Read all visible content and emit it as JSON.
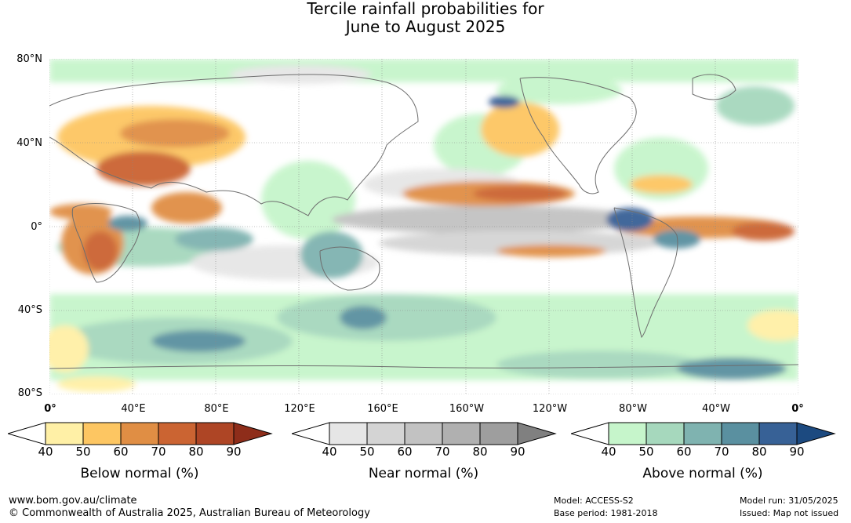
{
  "title": {
    "line1": "Tercile rainfall probabilities for",
    "line2": "June to August 2025"
  },
  "map": {
    "lat_labels": [
      "80°N",
      "40°N",
      "0°",
      "40°S",
      "80°S"
    ],
    "lon_labels": [
      "0°",
      "40°E",
      "80°E",
      "120°E",
      "160°E",
      "160°W",
      "120°W",
      "80°W",
      "40°W",
      "0°"
    ]
  },
  "legends": [
    {
      "id": "below",
      "title": "Below normal (%)",
      "ticks": [
        "40",
        "50",
        "60",
        "70",
        "80",
        "90"
      ],
      "colors": [
        "#fff0a6",
        "#fdc662",
        "#e08e44",
        "#cb6432",
        "#ae4525",
        "#8e2d1a"
      ]
    },
    {
      "id": "near",
      "title": "Near normal (%)",
      "ticks": [
        "40",
        "50",
        "60",
        "70",
        "80",
        "90"
      ],
      "colors": [
        "#e6e6e6",
        "#d4d4d4",
        "#c2c2c2",
        "#b0b0b0",
        "#9e9e9e",
        "#808080"
      ]
    },
    {
      "id": "above",
      "title": "Above normal (%)",
      "ticks": [
        "40",
        "50",
        "60",
        "70",
        "80",
        "90"
      ],
      "colors": [
        "#c6f5cb",
        "#a6d8bd",
        "#7fb3b0",
        "#5a90a0",
        "#376196",
        "#1c4a80"
      ]
    }
  ],
  "footer": {
    "url": "www.bom.gov.au/climate",
    "copyright": "© Commonwealth of Australia 2025, Australian Bureau of Meteorology",
    "model": "Model: ACCESS-S2",
    "base_period": "Base period: 1981-2018",
    "model_run": "Model run: 31/05/2025",
    "issued": "Issued: Map not issued"
  }
}
